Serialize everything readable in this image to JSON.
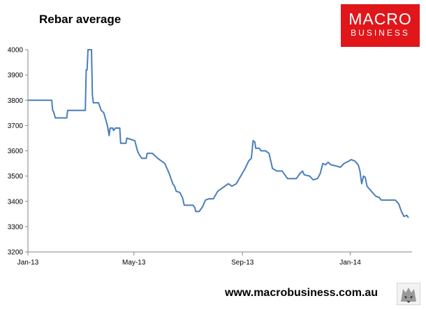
{
  "header": {
    "title": "Rebar average"
  },
  "logo": {
    "line1": "MACRO",
    "line2": "BUSINESS",
    "color": "#e0161b"
  },
  "footer": {
    "url": "www.macrobusiness.com.au"
  },
  "colors": {
    "line": "#4a7ebb",
    "axis": "#868686"
  },
  "chart_data": {
    "type": "line",
    "title": "Rebar average",
    "xlabel": "",
    "ylabel": "",
    "ylim": [
      3200,
      4000
    ],
    "yticks": [
      3200,
      3300,
      3400,
      3500,
      3600,
      3700,
      3800,
      3900,
      4000
    ],
    "xlim": [
      "2013-01-01",
      "2014-03-12"
    ],
    "xticks": [
      {
        "date": "2013-01-01",
        "label": "Jan-13"
      },
      {
        "date": "2013-05-01",
        "label": "May-13"
      },
      {
        "date": "2013-09-01",
        "label": "Sep-13"
      },
      {
        "date": "2014-01-01",
        "label": "Jan-14"
      }
    ],
    "grid": false,
    "legend": "none",
    "series": [
      {
        "name": "",
        "points": [
          [
            "2013-01-01",
            3800
          ],
          [
            "2013-01-28",
            3800
          ],
          [
            "2013-01-29",
            3760
          ],
          [
            "2013-01-30",
            3755
          ],
          [
            "2013-02-01",
            3730
          ],
          [
            "2013-02-14",
            3730
          ],
          [
            "2013-02-15",
            3760
          ],
          [
            "2013-03-07",
            3760
          ],
          [
            "2013-03-08",
            3920
          ],
          [
            "2013-03-09",
            3920
          ],
          [
            "2013-03-10",
            4000
          ],
          [
            "2013-03-14",
            4000
          ],
          [
            "2013-03-15",
            3820
          ],
          [
            "2013-03-16",
            3790
          ],
          [
            "2013-03-22",
            3790
          ],
          [
            "2013-03-25",
            3760
          ],
          [
            "2013-03-28",
            3750
          ],
          [
            "2013-04-01",
            3700
          ],
          [
            "2013-04-03",
            3660
          ],
          [
            "2013-04-04",
            3690
          ],
          [
            "2013-04-07",
            3690
          ],
          [
            "2013-04-08",
            3680
          ],
          [
            "2013-04-10",
            3690
          ],
          [
            "2013-04-15",
            3690
          ],
          [
            "2013-04-16",
            3630
          ],
          [
            "2013-04-22",
            3630
          ],
          [
            "2013-04-23",
            3650
          ],
          [
            "2013-05-02",
            3640
          ],
          [
            "2013-05-05",
            3600
          ],
          [
            "2013-05-07",
            3585
          ],
          [
            "2013-05-10",
            3570
          ],
          [
            "2013-05-15",
            3570
          ],
          [
            "2013-05-16",
            3590
          ],
          [
            "2013-05-22",
            3590
          ],
          [
            "2013-05-28",
            3570
          ],
          [
            "2013-06-05",
            3550
          ],
          [
            "2013-06-10",
            3510
          ],
          [
            "2013-06-14",
            3470
          ],
          [
            "2013-06-16",
            3460
          ],
          [
            "2013-06-18",
            3440
          ],
          [
            "2013-06-22",
            3435
          ],
          [
            "2013-06-25",
            3415
          ],
          [
            "2013-06-27",
            3385
          ],
          [
            "2013-07-07",
            3385
          ],
          [
            "2013-07-09",
            3375
          ],
          [
            "2013-07-10",
            3360
          ],
          [
            "2013-07-14",
            3360
          ],
          [
            "2013-07-18",
            3380
          ],
          [
            "2013-07-21",
            3405
          ],
          [
            "2013-07-25",
            3410
          ],
          [
            "2013-07-30",
            3410
          ],
          [
            "2013-08-04",
            3440
          ],
          [
            "2013-08-10",
            3455
          ],
          [
            "2013-08-16",
            3470
          ],
          [
            "2013-08-20",
            3460
          ],
          [
            "2013-08-25",
            3470
          ],
          [
            "2013-08-30",
            3500
          ],
          [
            "2013-09-04",
            3530
          ],
          [
            "2013-09-08",
            3560
          ],
          [
            "2013-09-11",
            3570
          ],
          [
            "2013-09-13",
            3640
          ],
          [
            "2013-09-15",
            3635
          ],
          [
            "2013-09-16",
            3610
          ],
          [
            "2013-09-20",
            3610
          ],
          [
            "2013-09-22",
            3600
          ],
          [
            "2013-09-27",
            3600
          ],
          [
            "2013-10-01",
            3590
          ],
          [
            "2013-10-03",
            3560
          ],
          [
            "2013-10-05",
            3530
          ],
          [
            "2013-10-10",
            3520
          ],
          [
            "2013-10-16",
            3520
          ],
          [
            "2013-10-19",
            3505
          ],
          [
            "2013-10-22",
            3490
          ],
          [
            "2013-11-01",
            3490
          ],
          [
            "2013-11-05",
            3510
          ],
          [
            "2013-11-08",
            3520
          ],
          [
            "2013-11-10",
            3505
          ],
          [
            "2013-11-16",
            3500
          ],
          [
            "2013-11-20",
            3485
          ],
          [
            "2013-11-25",
            3490
          ],
          [
            "2013-11-28",
            3510
          ],
          [
            "2013-12-01",
            3550
          ],
          [
            "2013-12-04",
            3545
          ],
          [
            "2013-12-07",
            3555
          ],
          [
            "2013-12-10",
            3545
          ],
          [
            "2013-12-16",
            3540
          ],
          [
            "2013-12-21",
            3535
          ],
          [
            "2013-12-25",
            3550
          ],
          [
            "2013-12-31",
            3560
          ],
          [
            "2014-01-02",
            3565
          ],
          [
            "2014-01-06",
            3560
          ],
          [
            "2014-01-10",
            3545
          ],
          [
            "2014-01-12",
            3520
          ],
          [
            "2014-01-14",
            3470
          ],
          [
            "2014-01-16",
            3500
          ],
          [
            "2014-01-18",
            3495
          ],
          [
            "2014-01-20",
            3460
          ],
          [
            "2014-01-25",
            3440
          ],
          [
            "2014-01-30",
            3420
          ],
          [
            "2014-02-03",
            3415
          ],
          [
            "2014-02-05",
            3405
          ],
          [
            "2014-02-21",
            3405
          ],
          [
            "2014-02-25",
            3390
          ],
          [
            "2014-02-28",
            3360
          ],
          [
            "2014-03-03",
            3340
          ],
          [
            "2014-03-06",
            3345
          ],
          [
            "2014-03-08",
            3335
          ]
        ]
      }
    ]
  }
}
